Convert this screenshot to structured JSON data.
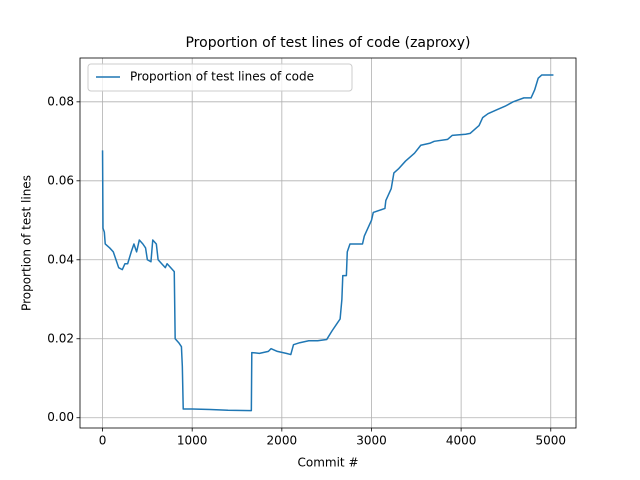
{
  "chart_data": {
    "type": "line",
    "title": "Proportion of test lines of code (zaproxy)",
    "xlabel": "Commit #",
    "ylabel": "Proportion of test lines",
    "x": [
      0,
      5,
      20,
      30,
      80,
      120,
      150,
      180,
      220,
      250,
      280,
      320,
      350,
      380,
      410,
      450,
      480,
      500,
      540,
      560,
      600,
      620,
      660,
      700,
      720,
      760,
      800,
      810,
      850,
      880,
      890,
      900,
      1000,
      1200,
      1400,
      1660,
      1665,
      1750,
      1850,
      1880,
      1950,
      2050,
      2100,
      2130,
      2200,
      2300,
      2400,
      2500,
      2560,
      2620,
      2650,
      2670,
      2680,
      2720,
      2730,
      2760,
      2900,
      2920,
      2980,
      3000,
      3020,
      3150,
      3160,
      3220,
      3250,
      3300,
      3380,
      3480,
      3550,
      3650,
      3700,
      3850,
      3900,
      4050,
      4100,
      4200,
      4240,
      4300,
      4400,
      4500,
      4580,
      4700,
      4780,
      4820,
      4860,
      4900,
      5030
    ],
    "series": [
      {
        "name": "Proportion of test lines of code",
        "color": "#1f77b4",
        "values": [
          0.0677,
          0.048,
          0.047,
          0.044,
          0.043,
          0.042,
          0.04,
          0.038,
          0.0375,
          0.039,
          0.039,
          0.042,
          0.044,
          0.042,
          0.045,
          0.044,
          0.043,
          0.04,
          0.0395,
          0.045,
          0.044,
          0.04,
          0.039,
          0.038,
          0.039,
          0.038,
          0.037,
          0.02,
          0.019,
          0.018,
          0.013,
          0.0022,
          0.0022,
          0.0021,
          0.0019,
          0.0018,
          0.0165,
          0.0163,
          0.0168,
          0.0175,
          0.0168,
          0.0163,
          0.016,
          0.0185,
          0.019,
          0.0195,
          0.0195,
          0.0198,
          0.022,
          0.024,
          0.025,
          0.03,
          0.036,
          0.036,
          0.042,
          0.044,
          0.044,
          0.046,
          0.049,
          0.05,
          0.052,
          0.053,
          0.055,
          0.058,
          0.062,
          0.063,
          0.065,
          0.067,
          0.069,
          0.0695,
          0.07,
          0.0705,
          0.0715,
          0.0718,
          0.072,
          0.074,
          0.076,
          0.077,
          0.078,
          0.079,
          0.08,
          0.081,
          0.081,
          0.083,
          0.086,
          0.0868,
          0.0868
        ]
      }
    ],
    "xlim": [
      -251.5,
      5281.5
    ],
    "ylim": [
      -0.0026,
      0.0911
    ],
    "xticks": [
      0,
      1000,
      2000,
      3000,
      4000,
      5000
    ],
    "yticks": [
      {
        "value": 0,
        "label": "0.00"
      },
      {
        "value": 0.02,
        "label": "0.02"
      },
      {
        "value": 0.04,
        "label": "0.04"
      },
      {
        "value": 0.06,
        "label": "0.06"
      },
      {
        "value": 0.08,
        "label": "0.08"
      }
    ],
    "grid": true,
    "legend": "upper left"
  }
}
